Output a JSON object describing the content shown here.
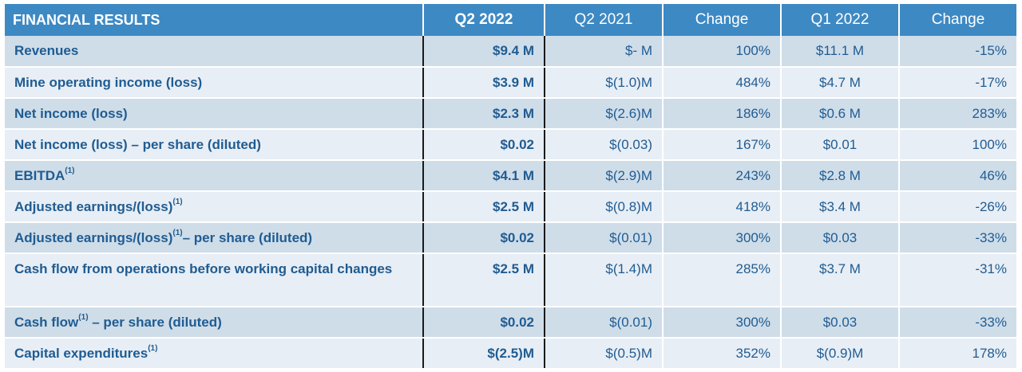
{
  "header": {
    "label": "FINANCIAL RESULTS",
    "col_q2_2022": "Q2 2022",
    "col_q2_2021": "Q2 2021",
    "col_change_1": "Change",
    "col_q1_2022": "Q1 2022",
    "col_change_2": "Change"
  },
  "rows": [
    {
      "label": "Revenues",
      "sup": "",
      "suffix": "",
      "q2_2022": "$9.4 M",
      "q2_2021": "$- M",
      "change_1": "100%",
      "q1_2022": "$11.1 M",
      "change_2": "-15%"
    },
    {
      "label": "Mine operating income (loss)",
      "sup": "",
      "suffix": "",
      "q2_2022": "$3.9 M",
      "q2_2021": "$(1.0)M",
      "change_1": "484%",
      "q1_2022": "$4.7 M",
      "change_2": "-17%"
    },
    {
      "label": "Net income (loss)",
      "sup": "",
      "suffix": "",
      "q2_2022": "$2.3 M",
      "q2_2021": "$(2.6)M",
      "change_1": "186%",
      "q1_2022": "$0.6 M",
      "change_2": "283%"
    },
    {
      "label": "Net income (loss) – per share (diluted)",
      "sup": "",
      "suffix": "",
      "q2_2022": "$0.02",
      "q2_2021": "$(0.03)",
      "change_1": "167%",
      "q1_2022": "$0.01",
      "change_2": "100%"
    },
    {
      "label": "EBITDA",
      "sup": "(1)",
      "suffix": "",
      "q2_2022": "$4.1 M",
      "q2_2021": "$(2.9)M",
      "change_1": "243%",
      "q1_2022": "$2.8 M",
      "change_2": "46%"
    },
    {
      "label": "Adjusted earnings/(loss)",
      "sup": "(1)",
      "suffix": "",
      "q2_2022": "$2.5 M",
      "q2_2021": "$(0.8)M",
      "change_1": "418%",
      "q1_2022": "$3.4 M",
      "change_2": "-26%"
    },
    {
      "label": "Adjusted earnings/(loss)",
      "sup": "(1)",
      "suffix": "– per share (diluted)",
      "q2_2022": "$0.02",
      "q2_2021": "$(0.01)",
      "change_1": "300%",
      "q1_2022": "$0.03",
      "change_2": "-33%"
    },
    {
      "label": "Cash flow from operations before working capital changes",
      "sup": "",
      "suffix": "",
      "q2_2022": "$2.5 M",
      "q2_2021": "$(1.4)M",
      "change_1": "285%",
      "q1_2022": "$3.7 M",
      "change_2": "-31%"
    },
    {
      "label": "Cash flow",
      "sup": "(1)",
      "suffix": " – per share (diluted)",
      "q2_2022": "$0.02",
      "q2_2021": "$(0.01)",
      "change_1": "300%",
      "q1_2022": "$0.03",
      "change_2": "-33%"
    },
    {
      "label": "Capital expenditures",
      "sup": "(1)",
      "suffix": "",
      "q2_2022": "$(2.5)M",
      "q2_2021": "$(0.5)M",
      "change_1": "352%",
      "q1_2022": "$(0.9)M",
      "change_2": "178%"
    }
  ]
}
